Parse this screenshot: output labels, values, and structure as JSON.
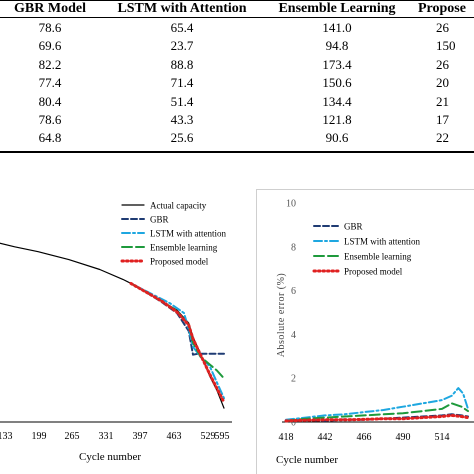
{
  "table": {
    "headers": [
      "GBR Model",
      "LSTM with Attention",
      "Ensemble Learning",
      "Propose"
    ],
    "rows": [
      [
        "78.6",
        "65.4",
        "141.0",
        "26"
      ],
      [
        "69.6",
        "23.7",
        "94.8",
        "150"
      ],
      [
        "82.2",
        "88.8",
        "173.4",
        "26"
      ],
      [
        "77.4",
        "71.4",
        "150.6",
        "20"
      ],
      [
        "80.4",
        "51.4",
        "134.4",
        "21"
      ],
      [
        "78.6",
        "43.3",
        "121.8",
        "17"
      ],
      [
        "64.8",
        "25.6",
        "90.6",
        "22"
      ]
    ]
  },
  "chart_data": [
    {
      "type": "line",
      "xlabel": "Cycle number",
      "ylabel": "",
      "x_ticks": [
        "133",
        "199",
        "265",
        "331",
        "397",
        "463",
        "529",
        "595"
      ],
      "xlim": [
        106,
        595
      ],
      "ylim": [
        0,
        1
      ],
      "legend_position": "top-center",
      "series": [
        {
          "name": "Actual capacity",
          "color": "#000000",
          "style": "solid",
          "x": [
            106,
            150,
            200,
            265,
            331,
            380,
            397,
            430,
            463,
            495,
            520,
            529,
            545,
            565,
            580,
            595
          ],
          "y": [
            0.91,
            0.885,
            0.86,
            0.82,
            0.77,
            0.72,
            0.7,
            0.655,
            0.61,
            0.565,
            0.5,
            0.43,
            0.345,
            0.23,
            0.16,
            0.07
          ]
        },
        {
          "name": "GBR",
          "color": "#1f3b73",
          "style": "dashed",
          "x": [
            397,
            430,
            463,
            495,
            520,
            529,
            540,
            560,
            580,
            595
          ],
          "y": [
            0.7,
            0.655,
            0.605,
            0.55,
            0.46,
            0.34,
            0.345,
            0.345,
            0.345,
            0.345
          ]
        },
        {
          "name": "LSTM with attention",
          "color": "#1ea7e0",
          "style": "dashdot",
          "x": [
            397,
            430,
            463,
            480,
            495,
            510,
            520,
            529,
            545,
            565,
            580,
            595
          ],
          "y": [
            0.7,
            0.66,
            0.62,
            0.6,
            0.575,
            0.55,
            0.47,
            0.38,
            0.33,
            0.28,
            0.2,
            0.12
          ]
        },
        {
          "name": "Ensemble learning",
          "color": "#1e9a3c",
          "style": "longdash",
          "x": [
            397,
            430,
            463,
            495,
            520,
            529,
            545,
            565,
            580,
            595
          ],
          "y": [
            0.7,
            0.655,
            0.61,
            0.56,
            0.49,
            0.4,
            0.33,
            0.29,
            0.26,
            0.22
          ]
        },
        {
          "name": "Proposed model",
          "color": "#e02020",
          "style": "dotted",
          "x": [
            397,
            430,
            463,
            495,
            520,
            529,
            545,
            565,
            580,
            595
          ],
          "y": [
            0.7,
            0.655,
            0.61,
            0.555,
            0.49,
            0.42,
            0.34,
            0.24,
            0.17,
            0.1
          ]
        }
      ]
    },
    {
      "type": "line",
      "xlabel": "Cycle number",
      "ylabel": "Absolute error (%)",
      "x_ticks": [
        "418",
        "442",
        "466",
        "490",
        "514"
      ],
      "y_ticks": [
        "0",
        "2",
        "4",
        "6",
        "8",
        "10"
      ],
      "xlim": [
        418,
        530
      ],
      "ylim": [
        0,
        10
      ],
      "legend_position": "top-left",
      "series": [
        {
          "name": "GBR",
          "color": "#1f3b73",
          "style": "dashed",
          "x": [
            418,
            430,
            442,
            454,
            466,
            478,
            490,
            502,
            514,
            520,
            526,
            530
          ],
          "y": [
            0.05,
            0.1,
            0.05,
            0.12,
            0.1,
            0.15,
            0.2,
            0.25,
            0.3,
            0.35,
            0.3,
            0.25
          ]
        },
        {
          "name": "LSTM with attention",
          "color": "#1ea7e0",
          "style": "dashdot",
          "x": [
            418,
            430,
            442,
            454,
            466,
            478,
            490,
            502,
            514,
            520,
            524,
            527,
            530
          ],
          "y": [
            0.1,
            0.2,
            0.3,
            0.35,
            0.45,
            0.55,
            0.7,
            0.85,
            1.0,
            1.2,
            1.55,
            1.3,
            0.6
          ]
        },
        {
          "name": "Ensemble learning",
          "color": "#1e9a3c",
          "style": "longdash",
          "x": [
            418,
            430,
            442,
            454,
            466,
            478,
            490,
            502,
            514,
            520,
            526,
            530
          ],
          "y": [
            0.05,
            0.15,
            0.2,
            0.25,
            0.3,
            0.35,
            0.4,
            0.5,
            0.6,
            0.85,
            0.7,
            0.5
          ]
        },
        {
          "name": "Proposed model",
          "color": "#e02020",
          "style": "dotted",
          "x": [
            418,
            430,
            442,
            454,
            466,
            478,
            490,
            502,
            514,
            520,
            526,
            530
          ],
          "y": [
            0.05,
            0.08,
            0.1,
            0.1,
            0.12,
            0.15,
            0.15,
            0.2,
            0.25,
            0.3,
            0.25,
            0.2
          ]
        }
      ]
    }
  ]
}
